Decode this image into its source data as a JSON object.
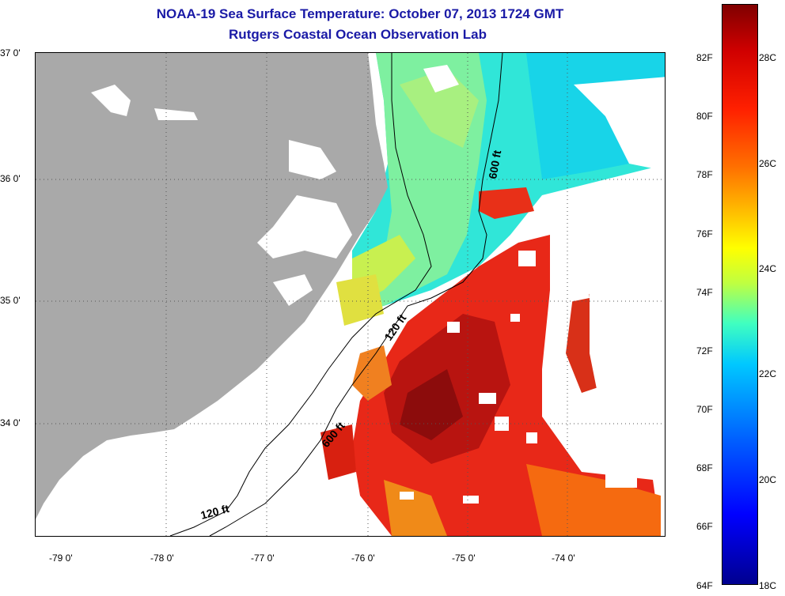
{
  "title": {
    "line1": "NOAA-19 Sea Surface Temperature:  October 07, 2013 1724 GMT",
    "line2": "Rutgers Coastal Ocean Observation Lab"
  },
  "map": {
    "lat_labels": [
      "37 0'",
      "36 0'",
      "35 0'",
      "34 0'"
    ],
    "lon_labels": [
      "-79 0'",
      "-78 0'",
      "-77 0'",
      "-76 0'",
      "-75 0'",
      "-74 0'"
    ],
    "contour_labels": [
      "600 ft",
      "120 ft",
      "600 ft",
      "120 ft"
    ],
    "land_color": "#a9a9a9",
    "water_bg_color": "#ffffff"
  },
  "colorbar": {
    "fahrenheit_labels": [
      "82F",
      "80F",
      "78F",
      "76F",
      "74F",
      "72F",
      "70F",
      "68F",
      "66F",
      "64F"
    ],
    "celsius_labels": [
      "28C",
      "26C",
      "24C",
      "22C",
      "20C",
      "18C"
    ],
    "min_color": "#00008f",
    "max_color": "#800000"
  }
}
